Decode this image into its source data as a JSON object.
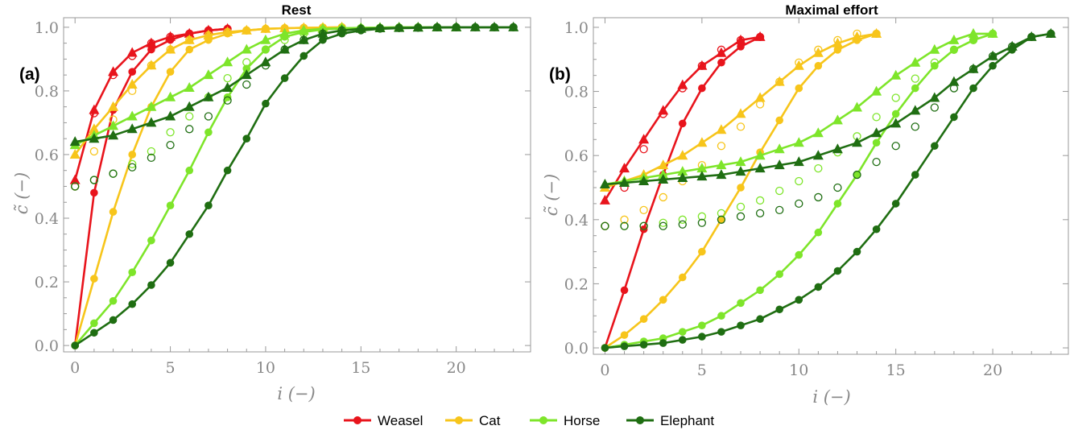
{
  "colors": {
    "Weasel": "#e8141c",
    "Cat": "#f7c51b",
    "Horse": "#7ee52a",
    "Elephant": "#1f6e12"
  },
  "legend": [
    "Weasel",
    "Cat",
    "Horse",
    "Elephant"
  ],
  "chart_data": [
    {
      "type": "line",
      "panel_label": "(a)",
      "title": "Rest",
      "xlabel": "i (−)",
      "ylabel": "c̃ (−)",
      "xlim": [
        -0.6,
        23.9
      ],
      "ylim": [
        -0.02,
        1.03
      ],
      "xticks": [
        0,
        5,
        10,
        15,
        20
      ],
      "yticks": [
        0.0,
        0.2,
        0.4,
        0.6,
        0.8,
        1.0
      ],
      "ytick_labels": [
        "0.0",
        "0.2",
        "0.4",
        "0.6",
        "0.8",
        "1.0"
      ],
      "grid": false,
      "series": [
        {
          "name": "Weasel",
          "x": [
            0,
            1,
            2,
            3,
            4,
            5,
            6,
            7,
            8
          ],
          "dots": [
            0.0,
            0.48,
            0.74,
            0.86,
            0.93,
            0.96,
            0.98,
            0.99,
            0.995
          ],
          "triangles": [
            0.52,
            0.74,
            0.86,
            0.92,
            0.95,
            0.97,
            0.98,
            0.99,
            0.995
          ],
          "circles": [
            0.5,
            0.73,
            0.85,
            0.91,
            0.95,
            0.97,
            0.98,
            0.99,
            0.995
          ]
        },
        {
          "name": "Cat",
          "x": [
            0,
            1,
            2,
            3,
            4,
            5,
            6,
            7,
            8,
            9,
            10,
            11,
            12,
            13,
            14
          ],
          "dots": [
            0.0,
            0.21,
            0.42,
            0.6,
            0.75,
            0.86,
            0.93,
            0.96,
            0.98,
            0.99,
            0.995,
            0.997,
            0.998,
            0.999,
            1.0
          ],
          "triangles": [
            0.6,
            0.68,
            0.75,
            0.82,
            0.88,
            0.93,
            0.96,
            0.975,
            0.985,
            0.99,
            0.995,
            0.997,
            0.998,
            0.999,
            1.0
          ],
          "circles": [
            0.5,
            0.61,
            0.71,
            0.8,
            0.88,
            0.93,
            0.96,
            0.975,
            0.985,
            0.99,
            0.995,
            0.997,
            0.998,
            0.999,
            1.0
          ]
        },
        {
          "name": "Horse",
          "x": [
            0,
            1,
            2,
            3,
            4,
            5,
            6,
            7,
            8,
            9,
            10,
            11,
            12,
            13,
            14,
            15,
            16,
            17,
            18,
            19,
            20
          ],
          "dots": [
            0.0,
            0.07,
            0.14,
            0.23,
            0.33,
            0.44,
            0.55,
            0.67,
            0.78,
            0.87,
            0.93,
            0.97,
            0.985,
            0.993,
            0.996,
            0.998,
            0.999,
            1.0,
            1.0,
            1.0,
            1.0
          ],
          "triangles": [
            0.63,
            0.66,
            0.69,
            0.72,
            0.75,
            0.78,
            0.81,
            0.85,
            0.89,
            0.93,
            0.96,
            0.98,
            0.99,
            0.995,
            0.997,
            0.998,
            0.999,
            1.0,
            1.0,
            1.0,
            1.0
          ],
          "circles": [
            0.5,
            0.52,
            0.54,
            0.57,
            0.61,
            0.67,
            0.72,
            0.78,
            0.84,
            0.89,
            0.93,
            0.96,
            0.98,
            0.99,
            0.995,
            0.997,
            0.998,
            0.999,
            1.0,
            1.0,
            1.0
          ]
        },
        {
          "name": "Elephant",
          "x": [
            0,
            1,
            2,
            3,
            4,
            5,
            6,
            7,
            8,
            9,
            10,
            11,
            12,
            13,
            14,
            15,
            16,
            17,
            18,
            19,
            20,
            21,
            22,
            23
          ],
          "dots": [
            0.0,
            0.04,
            0.08,
            0.13,
            0.19,
            0.26,
            0.35,
            0.44,
            0.55,
            0.65,
            0.76,
            0.84,
            0.91,
            0.96,
            0.98,
            0.99,
            0.995,
            0.997,
            0.998,
            0.999,
            1.0,
            1.0,
            1.0,
            1.0
          ],
          "triangles": [
            0.64,
            0.65,
            0.66,
            0.68,
            0.7,
            0.72,
            0.75,
            0.78,
            0.81,
            0.85,
            0.89,
            0.93,
            0.96,
            0.98,
            0.99,
            0.995,
            0.997,
            0.998,
            0.999,
            1.0,
            1.0,
            1.0,
            1.0,
            1.0
          ],
          "circles": [
            0.5,
            0.52,
            0.54,
            0.56,
            0.59,
            0.63,
            0.68,
            0.72,
            0.77,
            0.82,
            0.88,
            0.93,
            0.96,
            0.98,
            0.99,
            0.995,
            0.997,
            0.998,
            0.999,
            1.0,
            1.0,
            1.0,
            1.0,
            1.0
          ]
        }
      ]
    },
    {
      "type": "line",
      "panel_label": "(b)",
      "title": "Maximal effort",
      "xlabel": "i (−)",
      "ylabel": "c̃ (−)",
      "xlim": [
        -0.6,
        23.9
      ],
      "ylim": [
        -0.02,
        1.03
      ],
      "xticks": [
        0,
        5,
        10,
        15,
        20
      ],
      "yticks": [
        0.0,
        0.2,
        0.4,
        0.6,
        0.8,
        1.0
      ],
      "ytick_labels": [
        "0.0",
        "0.2",
        "0.4",
        "0.6",
        "0.8",
        "1.0"
      ],
      "grid": false,
      "series": [
        {
          "name": "Weasel",
          "x": [
            0,
            1,
            2,
            3,
            4,
            5,
            6,
            7,
            8
          ],
          "dots": [
            0.0,
            0.18,
            0.37,
            0.54,
            0.7,
            0.81,
            0.89,
            0.94,
            0.97
          ],
          "triangles": [
            0.46,
            0.56,
            0.65,
            0.74,
            0.82,
            0.88,
            0.92,
            0.96,
            0.97
          ],
          "circles": [
            0.38,
            0.5,
            0.62,
            0.73,
            0.81,
            0.88,
            0.93,
            0.96,
            0.97
          ]
        },
        {
          "name": "Cat",
          "x": [
            0,
            1,
            2,
            3,
            4,
            5,
            6,
            7,
            8,
            9,
            10,
            11,
            12,
            13,
            14
          ],
          "dots": [
            0.0,
            0.04,
            0.09,
            0.15,
            0.22,
            0.3,
            0.4,
            0.5,
            0.61,
            0.71,
            0.81,
            0.88,
            0.93,
            0.96,
            0.98
          ],
          "triangles": [
            0.5,
            0.52,
            0.54,
            0.57,
            0.6,
            0.64,
            0.68,
            0.73,
            0.78,
            0.83,
            0.88,
            0.92,
            0.95,
            0.97,
            0.98
          ],
          "circles": [
            0.38,
            0.4,
            0.43,
            0.47,
            0.52,
            0.57,
            0.63,
            0.69,
            0.76,
            0.83,
            0.89,
            0.93,
            0.96,
            0.98,
            0.98
          ]
        },
        {
          "name": "Horse",
          "x": [
            0,
            1,
            2,
            3,
            4,
            5,
            6,
            7,
            8,
            9,
            10,
            11,
            12,
            13,
            14,
            15,
            16,
            17,
            18,
            19,
            20
          ],
          "dots": [
            0.0,
            0.01,
            0.02,
            0.03,
            0.05,
            0.07,
            0.1,
            0.14,
            0.18,
            0.23,
            0.29,
            0.36,
            0.45,
            0.54,
            0.64,
            0.73,
            0.81,
            0.88,
            0.93,
            0.96,
            0.98
          ],
          "triangles": [
            0.51,
            0.52,
            0.53,
            0.54,
            0.55,
            0.56,
            0.57,
            0.58,
            0.6,
            0.62,
            0.64,
            0.67,
            0.71,
            0.75,
            0.8,
            0.85,
            0.89,
            0.93,
            0.96,
            0.98,
            0.98
          ],
          "circles": [
            0.38,
            0.38,
            0.38,
            0.39,
            0.4,
            0.41,
            0.42,
            0.44,
            0.46,
            0.49,
            0.52,
            0.56,
            0.61,
            0.66,
            0.72,
            0.78,
            0.84,
            0.89,
            0.93,
            0.96,
            0.98
          ]
        },
        {
          "name": "Elephant",
          "x": [
            0,
            1,
            2,
            3,
            4,
            5,
            6,
            7,
            8,
            9,
            10,
            11,
            12,
            13,
            14,
            15,
            16,
            17,
            18,
            19,
            20,
            21,
            22,
            23
          ],
          "dots": [
            0.0,
            0.005,
            0.01,
            0.015,
            0.025,
            0.035,
            0.05,
            0.07,
            0.09,
            0.12,
            0.15,
            0.19,
            0.24,
            0.3,
            0.37,
            0.45,
            0.54,
            0.63,
            0.72,
            0.81,
            0.88,
            0.93,
            0.97,
            0.98
          ],
          "triangles": [
            0.51,
            0.515,
            0.52,
            0.525,
            0.53,
            0.535,
            0.54,
            0.55,
            0.56,
            0.57,
            0.58,
            0.6,
            0.62,
            0.64,
            0.67,
            0.7,
            0.74,
            0.78,
            0.83,
            0.87,
            0.91,
            0.94,
            0.97,
            0.98
          ],
          "circles": [
            0.38,
            0.38,
            0.38,
            0.38,
            0.385,
            0.39,
            0.4,
            0.41,
            0.42,
            0.43,
            0.45,
            0.47,
            0.5,
            0.54,
            0.58,
            0.63,
            0.69,
            0.75,
            0.81,
            0.87,
            0.91,
            0.94,
            0.97,
            0.98
          ]
        }
      ]
    }
  ]
}
